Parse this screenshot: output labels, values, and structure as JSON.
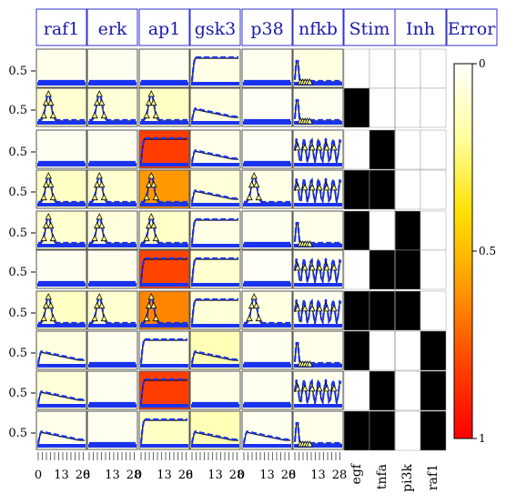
{
  "chart_data": {
    "type": "heatmap",
    "title": "",
    "readouts": [
      "raf1",
      "erk",
      "ap1",
      "gsk3",
      "p38",
      "nfkb"
    ],
    "stim_header": "Stim",
    "inh_header": "Inh",
    "error_header": "Error",
    "stimuli": [
      "egf",
      "tnfa"
    ],
    "inhibitors": [
      "pi3k",
      "raf1"
    ],
    "y_tick_label": "0.5",
    "x_tick_labels": [
      "0",
      "13",
      "28"
    ],
    "colorbar": {
      "low_label": "0",
      "mid_label": "0.5",
      "high_label": "1",
      "colors": [
        "#ffffff",
        "#ffff9e",
        "#ffe000",
        "#ff9900",
        "#ff4400",
        "#ff0000"
      ]
    },
    "stim_matrix": [
      [
        0,
        0
      ],
      [
        1,
        0
      ],
      [
        0,
        1
      ],
      [
        1,
        1
      ],
      [
        1,
        0
      ],
      [
        0,
        1
      ],
      [
        1,
        1
      ],
      [
        1,
        0
      ],
      [
        0,
        1
      ],
      [
        1,
        1
      ]
    ],
    "inh_matrix": [
      [
        0,
        0
      ],
      [
        0,
        0
      ],
      [
        0,
        0
      ],
      [
        0,
        0
      ],
      [
        1,
        0
      ],
      [
        1,
        0
      ],
      [
        1,
        0
      ],
      [
        0,
        1
      ],
      [
        0,
        1
      ],
      [
        0,
        1
      ]
    ],
    "error_matrix": [
      [
        0.04,
        0.03,
        0.03,
        0.05,
        0.03,
        0.06
      ],
      [
        0.1,
        0.08,
        0.12,
        0.06,
        0.02,
        0.03
      ],
      [
        0.03,
        0.03,
        0.82,
        0.04,
        0.02,
        0.04
      ],
      [
        0.12,
        0.1,
        0.6,
        0.08,
        0.05,
        0.03
      ],
      [
        0.1,
        0.07,
        0.11,
        0.05,
        0.03,
        0.04
      ],
      [
        0.03,
        0.04,
        0.8,
        0.1,
        0.02,
        0.04
      ],
      [
        0.12,
        0.1,
        0.65,
        0.08,
        0.06,
        0.03
      ],
      [
        0.06,
        0.03,
        0.05,
        0.15,
        0.03,
        0.04
      ],
      [
        0.08,
        0.03,
        0.82,
        0.05,
        0.03,
        0.04
      ],
      [
        0.04,
        0.03,
        0.12,
        0.15,
        0.03,
        0.04
      ]
    ],
    "trace_shape": [
      [
        "low",
        "low",
        "low",
        "high",
        "low",
        "spike"
      ],
      [
        "peak",
        "peak",
        "peak",
        "mid",
        "low",
        "spike"
      ],
      [
        "low",
        "low",
        "high",
        "mid",
        "low",
        "osc"
      ],
      [
        "peak",
        "peak",
        "peak",
        "mid",
        "peak",
        "osc"
      ],
      [
        "peak",
        "peak",
        "peak",
        "high",
        "low",
        "spike"
      ],
      [
        "low",
        "low",
        "high",
        "high",
        "low",
        "osc"
      ],
      [
        "peak",
        "peak",
        "peak",
        "high",
        "peak",
        "osc"
      ],
      [
        "mid",
        "low",
        "high",
        "mid",
        "low",
        "spike"
      ],
      [
        "mid",
        "low",
        "high",
        "low",
        "low",
        "osc"
      ],
      [
        "mid",
        "low",
        "high",
        "mid",
        "mid",
        "spike"
      ]
    ]
  }
}
